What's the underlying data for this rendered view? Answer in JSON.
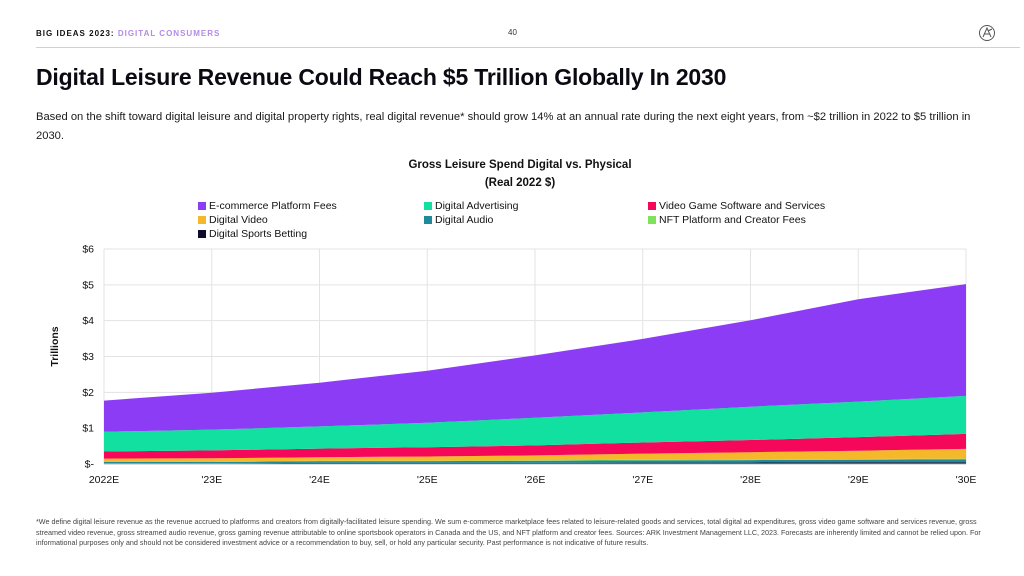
{
  "header": {
    "series": "BIG IDEAS 2023",
    "sep": ":",
    "topic": "DIGITAL CONSUMERS",
    "page": "40"
  },
  "title": "Digital Leisure Revenue Could Reach $5 Trillion Globally In 2030",
  "subtitle": "Based on the shift toward digital leisure and digital property rights, real digital revenue* should grow 14% at an annual rate during the next eight years, from ~$2 trillion in 2022 to $5 trillion in 2030.",
  "footnote": "*We define digital leisure revenue as the revenue accrued to platforms and creators from digitally-facilitated leisure spending. We sum e-commerce marketplace fees related to leisure-related goods and services, total digital ad expenditures, gross video game software and services revenue, gross streamed video revenue, gross streamed audio revenue, gross gaming revenue attributable to online sportsbook operators in Canada and the US, and NFT platform and creator fees. Sources: ARK Investment Management LLC, 2023. Forecasts are inherently limited and cannot be relied upon. For informational purposes only and should not be considered investment advice or a recommendation to buy, sell, or hold any particular security. Past performance is not indicative of future results.",
  "chart_data": {
    "type": "area",
    "stacked": true,
    "title": "Gross Leisure Spend Digital vs. Physical",
    "subtitle": "(Real 2022 $)",
    "ylabel": "Trillions",
    "xlabel": "",
    "ylim": [
      0,
      6
    ],
    "yticks": [
      0,
      1,
      2,
      3,
      4,
      5,
      6
    ],
    "ytick_labels": [
      "$-",
      "$1",
      "$2",
      "$3",
      "$4",
      "$5",
      "$6"
    ],
    "categories": [
      "2022E",
      "'23E",
      "'24E",
      "'25E",
      "'26E",
      "'27E",
      "'28E",
      "'29E",
      "'30E"
    ],
    "grid": true,
    "legend_position": "top",
    "series": [
      {
        "name": "Digital Sports Betting",
        "color": "#0d0b2e",
        "values": [
          0.02,
          0.02,
          0.03,
          0.03,
          0.03,
          0.04,
          0.04,
          0.05,
          0.05
        ]
      },
      {
        "name": "Digital Audio",
        "color": "#1f8a9a",
        "values": [
          0.04,
          0.04,
          0.05,
          0.05,
          0.06,
          0.06,
          0.07,
          0.07,
          0.08
        ]
      },
      {
        "name": "NFT Platform and Creator Fees",
        "color": "#7ee35a",
        "values": [
          0.01,
          0.01,
          0.01,
          0.01,
          0.01,
          0.02,
          0.02,
          0.02,
          0.02
        ]
      },
      {
        "name": "Digital Video",
        "color": "#f5b82a",
        "values": [
          0.08,
          0.09,
          0.1,
          0.12,
          0.14,
          0.17,
          0.2,
          0.23,
          0.27
        ]
      },
      {
        "name": "Video Game Software and Services",
        "color": "#f5085a",
        "values": [
          0.2,
          0.22,
          0.24,
          0.26,
          0.28,
          0.31,
          0.34,
          0.38,
          0.42
        ]
      },
      {
        "name": "Digital Advertising",
        "color": "#12e0a0",
        "values": [
          0.55,
          0.58,
          0.62,
          0.68,
          0.77,
          0.84,
          0.93,
          0.99,
          1.06
        ]
      },
      {
        "name": "E-commerce Platform Fees",
        "color": "#8c3cf5",
        "values": [
          0.87,
          1.03,
          1.22,
          1.45,
          1.74,
          2.05,
          2.41,
          2.86,
          3.12
        ]
      }
    ],
    "legend_order": [
      "E-commerce Platform Fees",
      "Digital Advertising",
      "Video Game Software and Services",
      "Digital Video",
      "Digital Audio",
      "NFT Platform and Creator Fees",
      "Digital Sports Betting"
    ]
  }
}
